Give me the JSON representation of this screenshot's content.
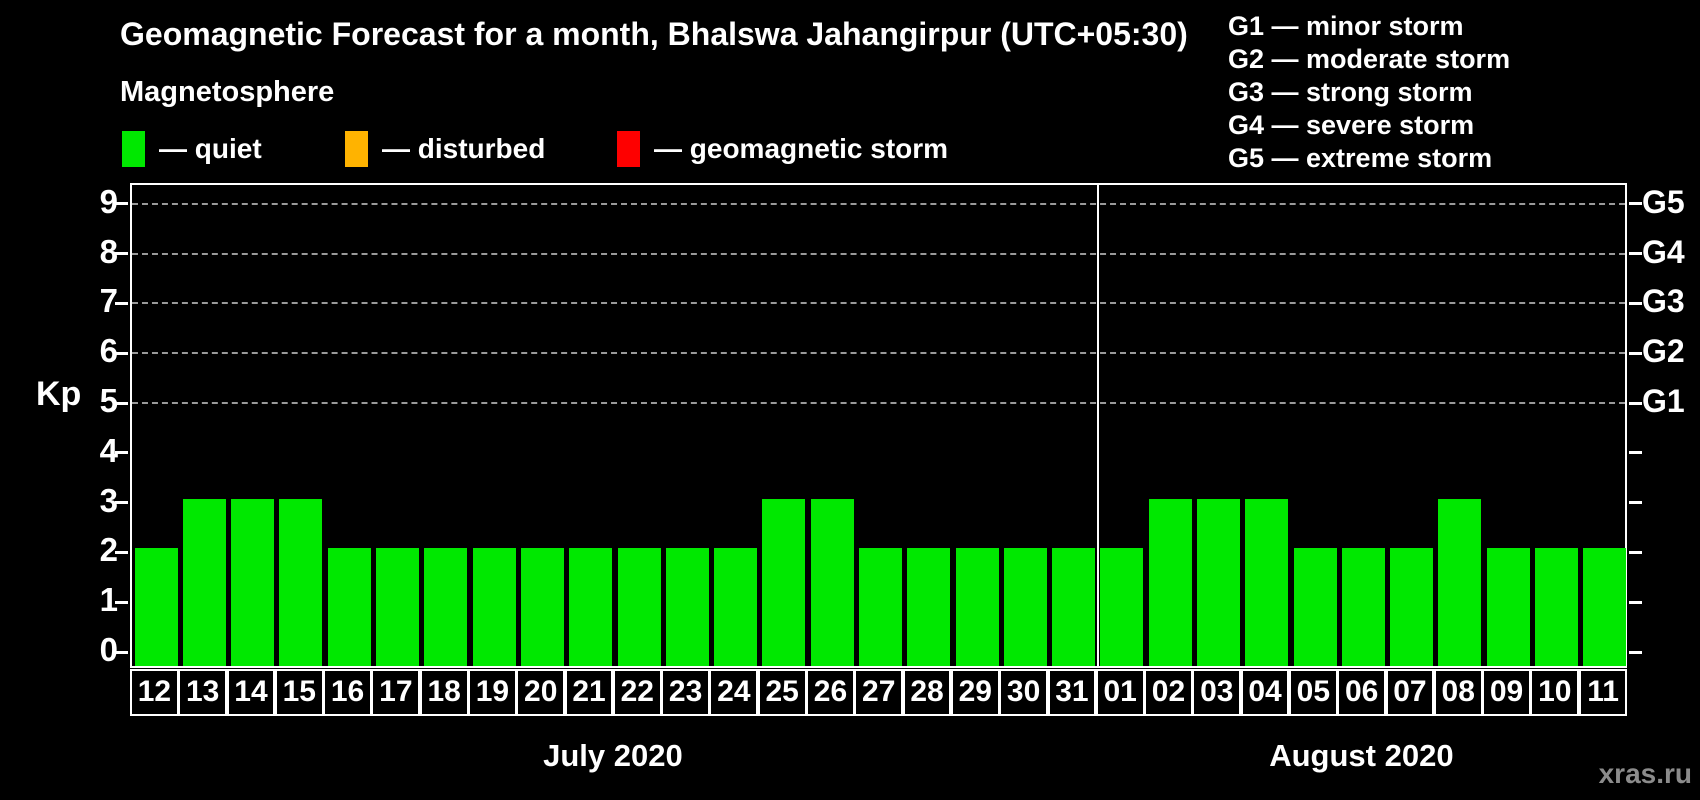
{
  "title": "Geomagnetic Forecast for a month, Bhalswa Jahangirpur (UTC+05:30)",
  "magnetosphere_legend": {
    "header": "Magnetosphere",
    "items": [
      {
        "name": "quiet",
        "label": "— quiet",
        "color": "#00e800"
      },
      {
        "name": "disturbed",
        "label": "— disturbed",
        "color": "#ffb300"
      },
      {
        "name": "geomagnetic-storm",
        "label": "— geomagnetic storm",
        "color": "#fe0000"
      }
    ]
  },
  "g_scale_legend": [
    "G1 — minor storm",
    "G2 — moderate storm",
    "G3 — strong storm",
    "G4 — severe storm",
    "G5 — extreme storm"
  ],
  "watermark": "xras.ru",
  "chart_data": {
    "type": "bar",
    "title": "Geomagnetic Forecast for a month, Bhalswa Jahangirpur (UTC+05:30)",
    "ylabel": "Kp",
    "ylim": [
      0,
      9
    ],
    "yticks": [
      0,
      1,
      2,
      3,
      4,
      5,
      6,
      7,
      8,
      9
    ],
    "grid": "horizontal dashed gridlines only at Kp 5-9 (G1-G5 levels)",
    "legend_position": "top-left",
    "bar_color": "#00e800",
    "right_axis": [
      {
        "label": "G1",
        "kp": 5
      },
      {
        "label": "G2",
        "kp": 6
      },
      {
        "label": "G3",
        "kp": 7
      },
      {
        "label": "G4",
        "kp": 8
      },
      {
        "label": "G5",
        "kp": 9
      }
    ],
    "months": [
      {
        "label": "July 2020",
        "categories": [
          "12",
          "13",
          "14",
          "15",
          "16",
          "17",
          "18",
          "19",
          "20",
          "21",
          "22",
          "23",
          "24",
          "25",
          "26",
          "27",
          "28",
          "29",
          "30",
          "31"
        ],
        "values": [
          2,
          3,
          3,
          3,
          2,
          2,
          2,
          2,
          2,
          2,
          2,
          2,
          2,
          3,
          3,
          2,
          2,
          2,
          2,
          2
        ]
      },
      {
        "label": "August 2020",
        "categories": [
          "01",
          "02",
          "03",
          "04",
          "05",
          "06",
          "07",
          "08",
          "09",
          "10",
          "11"
        ],
        "values": [
          2,
          3,
          3,
          3,
          2,
          2,
          2,
          3,
          2,
          2,
          2
        ]
      }
    ]
  }
}
